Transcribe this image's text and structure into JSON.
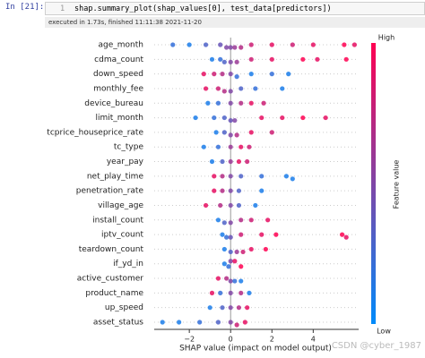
{
  "cell": {
    "prompt": "In [21]:",
    "line_number": "1",
    "code": "shap.summary_plot(shap_values[0], test_data[predictors])",
    "status": "executed in 1.73s, finished 11:11:38 2021-11-20"
  },
  "chart_data": {
    "type": "beeswarm",
    "xlabel": "SHAP value (impact on model output)",
    "xlim": [
      -3.7,
      6.2
    ],
    "xticks": [
      {
        "value": -2,
        "label": "−2"
      },
      0,
      2,
      4
    ],
    "colorbar": {
      "label": "Feature value",
      "high": "High",
      "low": "Low",
      "colors": [
        "#008bfb",
        "#ff0051"
      ]
    },
    "features": [
      "age_month",
      "cdma_count",
      "down_speed",
      "monthly_fee",
      "device_bureau",
      "limit_month",
      "tcprice_houseprice_rate",
      "tc_type",
      "year_pay",
      "net_play_time",
      "penetration_rate",
      "village_age",
      "install_count",
      "iptv_count",
      "teardown_count",
      "if_yd_in",
      "active_customer",
      "product_name",
      "up_speed",
      "asset_status"
    ],
    "points": [
      [
        [
          -2.8,
          0.2
        ],
        [
          -2,
          0.1
        ],
        [
          -1.2,
          0.3
        ],
        [
          -0.5,
          0.4
        ],
        [
          -0.2,
          0.5
        ],
        [
          0,
          0.5
        ],
        [
          0.2,
          0.6
        ],
        [
          0.5,
          0.7
        ],
        [
          1,
          0.8
        ],
        [
          2,
          0.9
        ],
        [
          3,
          0.8
        ],
        [
          4,
          0.9
        ],
        [
          5.5,
          1
        ],
        [
          6,
          0.9
        ]
      ],
      [
        [
          -0.9,
          0.1
        ],
        [
          -0.5,
          0.2
        ],
        [
          -0.3,
          0.3
        ],
        [
          0,
          0.5
        ],
        [
          0.3,
          0.6
        ],
        [
          1,
          0.8
        ],
        [
          2,
          0.9
        ],
        [
          3.5,
          1
        ],
        [
          4.2,
          0.9
        ],
        [
          5.6,
          1
        ]
      ],
      [
        [
          -1.3,
          0.9
        ],
        [
          -0.8,
          0.8
        ],
        [
          -0.4,
          0.7
        ],
        [
          0,
          0.5
        ],
        [
          0.3,
          0.2
        ],
        [
          1,
          0.1
        ],
        [
          2,
          0.2
        ],
        [
          2.8,
          0.1
        ]
      ],
      [
        [
          -1.2,
          0.9
        ],
        [
          -0.6,
          0.8
        ],
        [
          -0.3,
          0.7
        ],
        [
          0,
          0.5
        ],
        [
          0.5,
          0.3
        ],
        [
          1.2,
          0.2
        ],
        [
          2.5,
          0.1
        ]
      ],
      [
        [
          -1.1,
          0.1
        ],
        [
          -0.6,
          0.2
        ],
        [
          0,
          0.5
        ],
        [
          0.5,
          0.7
        ],
        [
          1,
          0.9
        ],
        [
          1.6,
          0.8
        ]
      ],
      [
        [
          -1.7,
          0.1
        ],
        [
          -0.8,
          0.2
        ],
        [
          -0.3,
          0.3
        ],
        [
          0,
          0.4
        ],
        [
          0.2,
          0.5
        ],
        [
          1.5,
          0.9
        ],
        [
          2.5,
          0.9
        ],
        [
          3.5,
          1
        ],
        [
          4.6,
          0.9
        ]
      ],
      [
        [
          -0.7,
          0.1
        ],
        [
          -0.3,
          0.3
        ],
        [
          0,
          0.5
        ],
        [
          0.3,
          0.7
        ],
        [
          1,
          0.9
        ],
        [
          2,
          0.8
        ]
      ],
      [
        [
          -1.3,
          0.1
        ],
        [
          -0.6,
          0.2
        ],
        [
          0,
          0.6
        ],
        [
          0.5,
          0.9
        ],
        [
          0.9,
          0.8
        ]
      ],
      [
        [
          -0.9,
          0.1
        ],
        [
          -0.4,
          0.3
        ],
        [
          0,
          0.6
        ],
        [
          0.4,
          0.9
        ],
        [
          0.8,
          0.8
        ]
      ],
      [
        [
          -0.8,
          0.9
        ],
        [
          -0.4,
          0.7
        ],
        [
          0,
          0.5
        ],
        [
          0.5,
          0.3
        ],
        [
          1.5,
          0.2
        ],
        [
          2.7,
          0.1
        ],
        [
          3,
          0.1
        ]
      ],
      [
        [
          -0.8,
          0.9
        ],
        [
          -0.4,
          0.7
        ],
        [
          0,
          0.5
        ],
        [
          0.4,
          0.3
        ],
        [
          1.5,
          0.1
        ]
      ],
      [
        [
          -1.2,
          0.9
        ],
        [
          -0.5,
          0.7
        ],
        [
          0,
          0.5
        ],
        [
          0.4,
          0.3
        ],
        [
          1.2,
          0.1
        ]
      ],
      [
        [
          -0.6,
          0.1
        ],
        [
          -0.3,
          0.3
        ],
        [
          0,
          0.5
        ],
        [
          0.5,
          0.7
        ],
        [
          1,
          0.8
        ],
        [
          1.8,
          0.9
        ]
      ],
      [
        [
          -0.4,
          0.1
        ],
        [
          -0.2,
          0.2
        ],
        [
          0,
          0.4
        ],
        [
          0.5,
          0.8
        ],
        [
          1.5,
          0.9
        ],
        [
          2.2,
          1
        ],
        [
          5.4,
          1
        ],
        [
          5.6,
          0.9
        ]
      ],
      [
        [
          -0.3,
          0.1
        ],
        [
          0,
          0.3
        ],
        [
          0.3,
          0.6
        ],
        [
          0.6,
          0.8
        ],
        [
          1,
          0.9
        ],
        [
          1.7,
          1
        ]
      ],
      [
        [
          -0.3,
          0.1
        ],
        [
          -0.1,
          0.2
        ],
        [
          0,
          0.5
        ],
        [
          0.2,
          0.9
        ],
        [
          0.5,
          1
        ]
      ],
      [
        [
          -0.6,
          0.9
        ],
        [
          -0.2,
          0.7
        ],
        [
          0,
          0.5
        ],
        [
          0.2,
          0.2
        ],
        [
          0.5,
          0.1
        ]
      ],
      [
        [
          -0.9,
          0.9
        ],
        [
          -0.5,
          0.2
        ],
        [
          0,
          0.5
        ],
        [
          0.5,
          0.7
        ],
        [
          0.9,
          0.1
        ]
      ],
      [
        [
          -1,
          0.1
        ],
        [
          -0.4,
          0.3
        ],
        [
          0,
          0.5
        ],
        [
          0.4,
          0.7
        ],
        [
          0.8,
          0.9
        ]
      ],
      [
        [
          -3.3,
          0.1
        ],
        [
          -2.5,
          0.1
        ],
        [
          -1.5,
          0.2
        ],
        [
          -0.6,
          0.3
        ],
        [
          0,
          0.5
        ],
        [
          0.3,
          0.8
        ],
        [
          0.7,
          0.9
        ]
      ]
    ]
  },
  "watermark": "CSDN @cyber_1987"
}
